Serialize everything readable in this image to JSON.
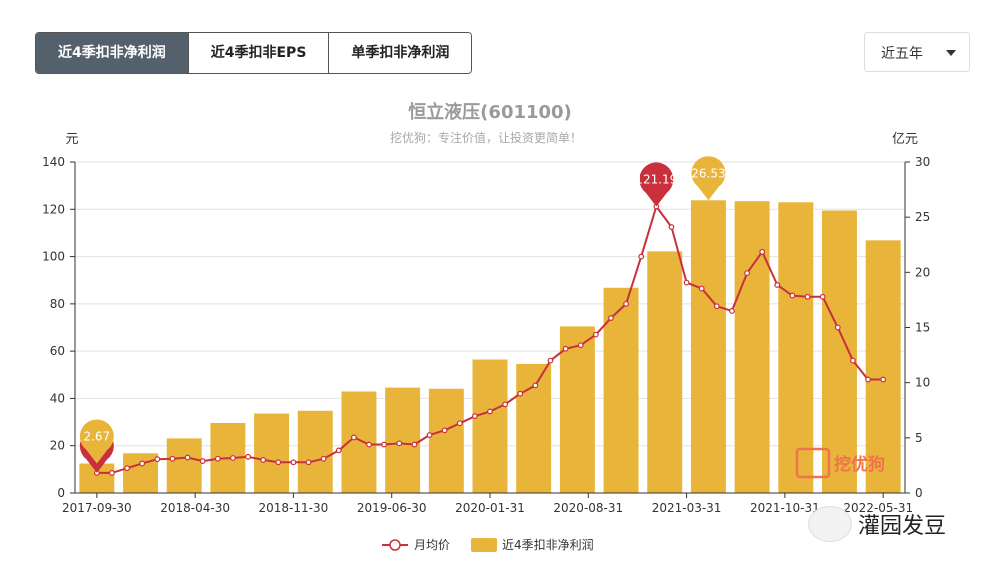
{
  "tabs": [
    {
      "label": "近4季扣非净利润",
      "active": true
    },
    {
      "label": "近4季扣非EPS",
      "active": false
    },
    {
      "label": "单季扣非净利润",
      "active": false
    }
  ],
  "period_select": {
    "value": "近五年"
  },
  "chart_data": {
    "type": "bar+line",
    "title": "恒立液压(601100)",
    "subtitle": "挖优狗：专注价值，让投资更简单！",
    "left_axis": {
      "unit": "元",
      "min": 0,
      "max": 140,
      "ticks": [
        0,
        20,
        40,
        60,
        80,
        100,
        120,
        140
      ]
    },
    "right_axis": {
      "unit": "亿元",
      "min": 0,
      "max": 30,
      "ticks": [
        0,
        5,
        10,
        15,
        20,
        25,
        30
      ]
    },
    "x_tick_labels": [
      "2017-09-30",
      "2018-04-30",
      "2018-11-30",
      "2019-06-30",
      "2020-01-31",
      "2020-08-31",
      "2021-03-31",
      "2021-10-31",
      "2022-05-31"
    ],
    "bar_series": {
      "name": "近4季扣非净利润",
      "color": "#e8b43a",
      "periods": [
        "2017-09-30",
        "2017-12-31",
        "2018-03-31",
        "2018-06-30",
        "2018-09-30",
        "2018-12-31",
        "2019-03-31",
        "2019-06-30",
        "2019-09-30",
        "2019-12-31",
        "2020-03-31",
        "2020-06-30",
        "2020-09-30",
        "2020-12-31",
        "2021-03-31",
        "2021-06-30",
        "2021-09-30",
        "2021-12-31",
        "2022-03-31"
      ],
      "values": [
        2.67,
        3.6,
        4.95,
        6.35,
        7.2,
        7.45,
        9.2,
        9.55,
        9.45,
        12.1,
        11.7,
        15.1,
        18.6,
        21.9,
        26.53,
        26.45,
        26.35,
        25.6,
        22.9
      ]
    },
    "line_series": {
      "name": "月均价",
      "color": "#c9303b",
      "values": [
        8.5,
        8.5,
        10.5,
        12.5,
        14.3,
        14.5,
        15,
        13.5,
        14.5,
        14.8,
        15.3,
        14,
        13,
        13,
        13,
        14.5,
        18,
        23.5,
        20.5,
        20.5,
        21,
        20.5,
        24.5,
        26.5,
        29.5,
        32.5,
        34.5,
        37.5,
        42,
        45.5,
        56,
        61,
        62.5,
        67,
        74,
        80,
        100,
        121.19,
        112.5,
        89,
        86.5,
        79,
        77,
        93,
        102,
        88,
        83.5,
        83,
        83,
        70,
        56,
        48,
        48
      ]
    },
    "markers": [
      {
        "series": "line",
        "label": "8.5"
      },
      {
        "series": "bar",
        "label": "2.67"
      },
      {
        "series": "line",
        "label": "121.19"
      },
      {
        "series": "bar",
        "label": "26.53"
      }
    ],
    "legend": {
      "position": "bottom-center",
      "items": [
        "月均价",
        "近4季扣非净利润"
      ]
    },
    "grid": true,
    "logo_text": "挖优狗"
  },
  "watermark": {
    "text": "灌园发豆"
  }
}
